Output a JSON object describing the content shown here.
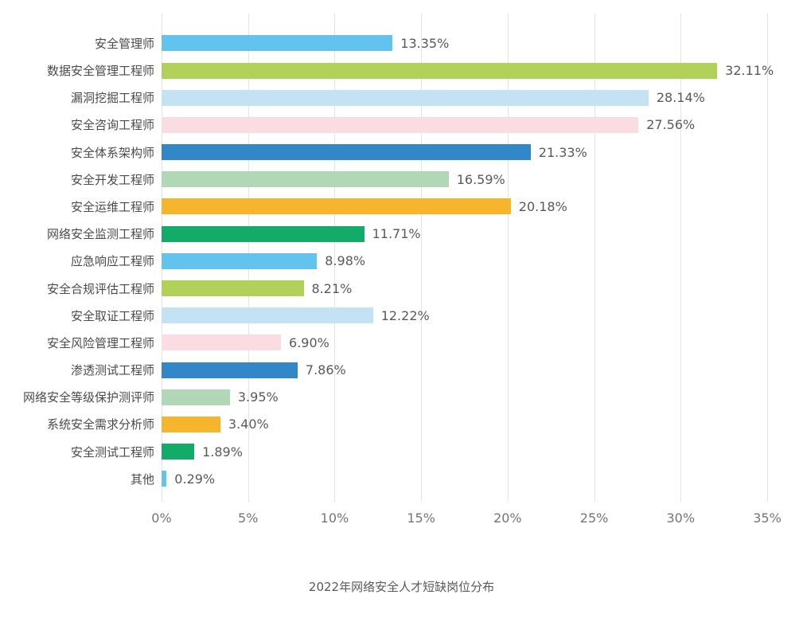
{
  "chart_data": {
    "type": "bar",
    "orientation": "horizontal",
    "title": "2022年网络安全人才短缺岗位分布",
    "categories": [
      "安全管理师",
      "数据安全管理工程师",
      "漏洞挖掘工程师",
      "安全咨询工程师",
      "安全体系架构师",
      "安全开发工程师",
      "安全运维工程师",
      "网络安全监测工程师",
      "应急响应工程师",
      "安全合规评估工程师",
      "安全取证工程师",
      "安全风险管理工程师",
      "渗透测试工程师",
      "网络安全等级保护测评师",
      "系统安全需求分析师",
      "安全测试工程师",
      "其他"
    ],
    "values": [
      13.35,
      32.11,
      28.14,
      27.56,
      21.33,
      16.59,
      20.18,
      11.71,
      8.98,
      8.21,
      12.22,
      6.9,
      7.86,
      3.95,
      3.4,
      1.89,
      0.29
    ],
    "value_labels": [
      "13.35%",
      "32.11%",
      "28.14%",
      "27.56%",
      "21.33%",
      "16.59%",
      "20.18%",
      "11.71%",
      "8.98%",
      "8.21%",
      "12.22%",
      "6.90%",
      "7.86%",
      "3.95%",
      "3.40%",
      "1.89%",
      "0.29%"
    ],
    "bar_colors": [
      "#63c3ef",
      "#b1d15b",
      "#c3e3f5",
      "#fadce2",
      "#3287c8",
      "#b0d8b6",
      "#f7b52d",
      "#12ab67",
      "#63c3ef",
      "#b1d15b",
      "#c3e3f5",
      "#fadce2",
      "#3287c8",
      "#b0d8b6",
      "#f7b52d",
      "#12ab67",
      "#63c3ef"
    ],
    "xlim": [
      0,
      35
    ],
    "x_ticks": [
      "0%",
      "5%",
      "10%",
      "15%",
      "20%",
      "25%",
      "30%",
      "35%"
    ],
    "grid": true,
    "legend": false
  },
  "colors": {
    "background": "#ffffff",
    "gridline": "#e4e4e4",
    "category_label": "#4a4a4a",
    "value_label": "#595959",
    "axis_label": "#757575",
    "title": "#595959"
  }
}
